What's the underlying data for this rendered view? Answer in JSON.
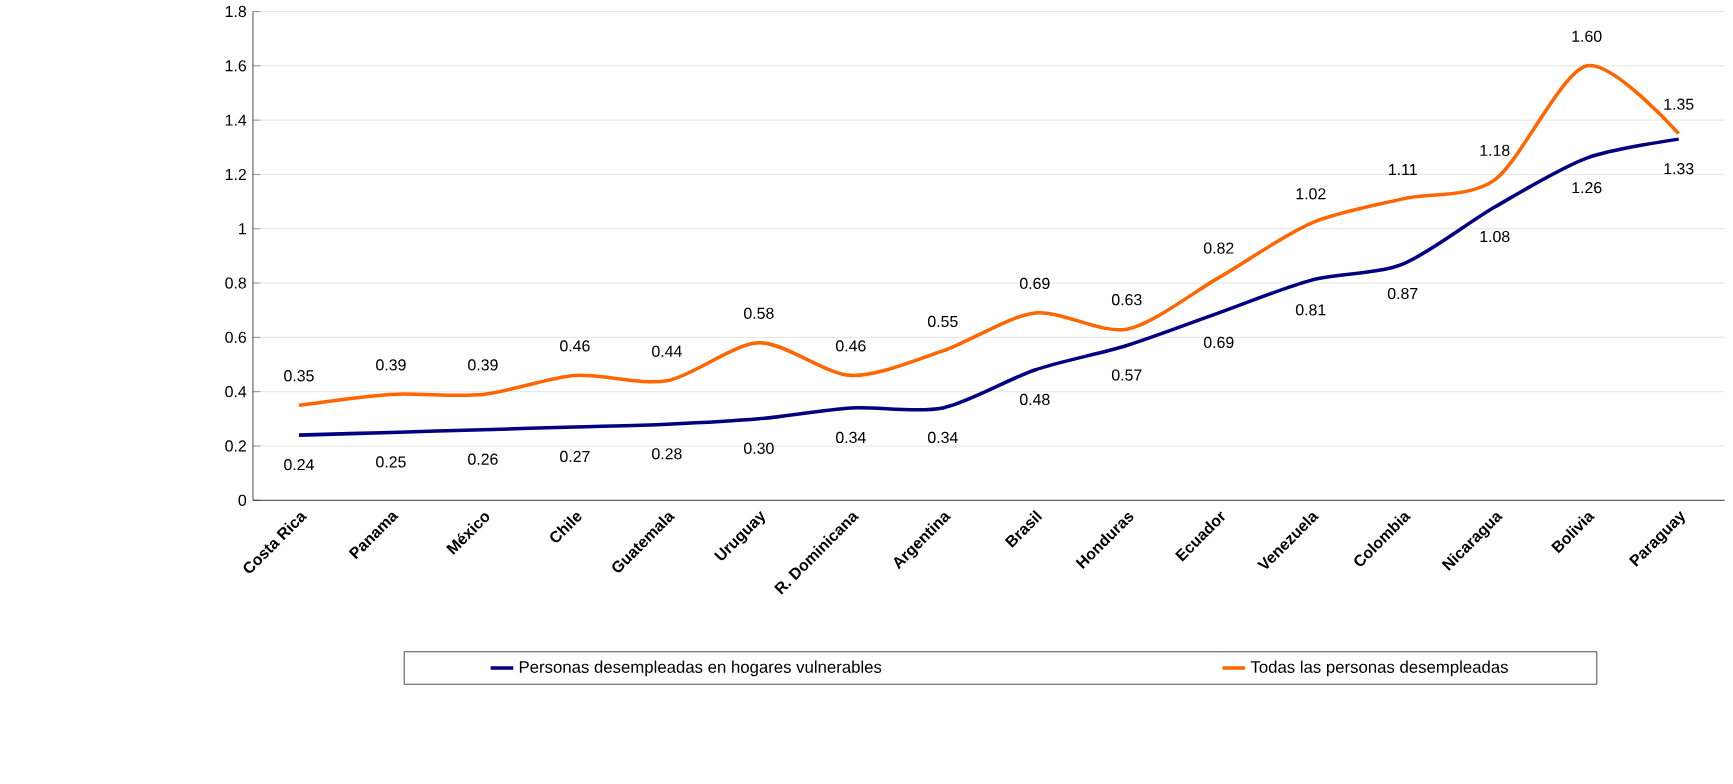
{
  "chart_data": {
    "type": "line",
    "categories": [
      "Costa Rica",
      "Panama",
      "México",
      "Chile",
      "Guatemala",
      "Uruguay",
      "R. Dominicana",
      "Argentina",
      "Brasil",
      "Honduras",
      "Ecuador",
      "Venezuela",
      "Colombia",
      "Nicaragua",
      "Bolivia",
      "Paraguay"
    ],
    "series": [
      {
        "name": "Personas desempleadas en hogares vulnerables",
        "color": "#000080",
        "values": [
          0.24,
          0.25,
          0.26,
          0.27,
          0.28,
          0.3,
          0.34,
          0.34,
          0.48,
          0.57,
          0.69,
          0.81,
          0.87,
          1.08,
          1.26,
          1.33
        ],
        "value_labels": [
          "0.24",
          "0.25",
          "0.26",
          "0.27",
          "0.28",
          "0.30",
          "0.34",
          "0.34",
          "0.48",
          "0.57",
          "0.69",
          "0.81",
          "0.87",
          "1.08",
          "1.26",
          "1.33"
        ]
      },
      {
        "name": "Todas las personas desempleadas",
        "color": "#ff6600",
        "values": [
          0.35,
          0.39,
          0.39,
          0.46,
          0.44,
          0.58,
          0.46,
          0.55,
          0.69,
          0.63,
          0.82,
          1.02,
          1.11,
          1.18,
          1.6,
          1.35
        ],
        "value_labels": [
          "0.35",
          "0.39",
          "0.39",
          "0.46",
          "0.44",
          "0.58",
          "0.46",
          "0.55",
          "0.69",
          "0.63",
          "0.82",
          "1.02",
          "1.11",
          "1.18",
          "1.60",
          "1.35"
        ]
      }
    ],
    "ylim": [
      0,
      1.8
    ],
    "yticks": [
      0,
      0.2,
      0.4,
      0.6,
      0.8,
      1,
      1.2,
      1.4,
      1.6,
      1.8
    ],
    "grid": "y",
    "legend": "bottom",
    "marker": "none",
    "line_style": "solid"
  }
}
